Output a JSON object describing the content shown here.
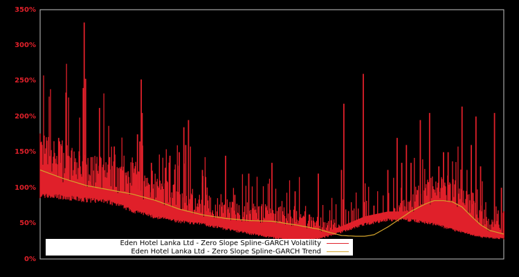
{
  "chart_data": {
    "type": "line",
    "title": "",
    "xlabel": "",
    "ylabel": "",
    "ylim": [
      0,
      350
    ],
    "y_ticks": [
      "0%",
      "50%",
      "100%",
      "150%",
      "200%",
      "250%",
      "300%",
      "350%"
    ],
    "grid": false,
    "legend_position": "lower-left",
    "background": "#000000",
    "frame_color": "#c8c8c8",
    "series": [
      {
        "name": "Eden Hotel Lanka Ltd - Zero Slope Spline-GARCH Volatility",
        "color": "#e0202a",
        "baseline_points": [
          [
            0,
            95
          ],
          [
            0.05,
            92
          ],
          [
            0.1,
            88
          ],
          [
            0.15,
            85
          ],
          [
            0.2,
            72
          ],
          [
            0.25,
            62
          ],
          [
            0.3,
            56
          ],
          [
            0.35,
            52
          ],
          [
            0.4,
            45
          ],
          [
            0.45,
            38
          ],
          [
            0.5,
            32
          ],
          [
            0.55,
            28
          ],
          [
            0.6,
            30
          ],
          [
            0.65,
            40
          ],
          [
            0.7,
            52
          ],
          [
            0.75,
            58
          ],
          [
            0.8,
            58
          ],
          [
            0.85,
            52
          ],
          [
            0.9,
            42
          ],
          [
            0.95,
            33
          ],
          [
            1.0,
            30
          ]
        ],
        "spikes": [
          [
            0.04,
            170
          ],
          [
            0.06,
            145
          ],
          [
            0.042,
            165
          ],
          [
            0.085,
            145
          ],
          [
            0.093,
            240
          ],
          [
            0.095,
            332
          ],
          [
            0.098,
            253
          ],
          [
            0.11,
            143
          ],
          [
            0.128,
            212
          ],
          [
            0.15,
            143
          ],
          [
            0.16,
            158
          ],
          [
            0.2,
            135
          ],
          [
            0.21,
            175
          ],
          [
            0.215,
            165
          ],
          [
            0.218,
            252
          ],
          [
            0.22,
            205
          ],
          [
            0.24,
            135
          ],
          [
            0.27,
            128
          ],
          [
            0.28,
            145
          ],
          [
            0.3,
            150
          ],
          [
            0.31,
            185
          ],
          [
            0.314,
            160
          ],
          [
            0.32,
            195
          ],
          [
            0.35,
            125
          ],
          [
            0.36,
            90
          ],
          [
            0.4,
            145
          ],
          [
            0.42,
            90
          ],
          [
            0.45,
            120
          ],
          [
            0.5,
            135
          ],
          [
            0.55,
            95
          ],
          [
            0.6,
            120
          ],
          [
            0.65,
            125
          ],
          [
            0.7,
            80
          ],
          [
            0.72,
            75
          ],
          [
            0.78,
            85
          ],
          [
            0.8,
            70
          ],
          [
            0.85,
            80
          ],
          [
            0.87,
            110
          ],
          [
            0.9,
            65
          ],
          [
            0.92,
            55
          ],
          [
            1.0,
            67
          ]
        ],
        "spikes_b": [
          [
            0.655,
            218
          ],
          [
            0.697,
            260
          ],
          [
            0.75,
            125
          ],
          [
            0.77,
            170
          ],
          [
            0.78,
            135
          ],
          [
            0.79,
            160
          ],
          [
            0.8,
            135
          ],
          [
            0.82,
            195
          ],
          [
            0.84,
            205
          ],
          [
            0.86,
            130
          ],
          [
            0.87,
            150
          ],
          [
            0.88,
            150
          ],
          [
            0.91,
            214
          ],
          [
            0.93,
            160
          ],
          [
            0.94,
            200
          ],
          [
            0.95,
            130
          ],
          [
            0.98,
            205
          ],
          [
            0.995,
            100
          ]
        ]
      },
      {
        "name": "Eden Hotel Lanka Ltd - Zero Slope Spline-GARCH Trend",
        "color": "#d4a52c",
        "points": [
          [
            0,
            125
          ],
          [
            0.05,
            113
          ],
          [
            0.1,
            103
          ],
          [
            0.15,
            97
          ],
          [
            0.2,
            91
          ],
          [
            0.25,
            82
          ],
          [
            0.3,
            70
          ],
          [
            0.35,
            62
          ],
          [
            0.4,
            57
          ],
          [
            0.45,
            54
          ],
          [
            0.5,
            53
          ],
          [
            0.55,
            48
          ],
          [
            0.6,
            42
          ],
          [
            0.62,
            38
          ],
          [
            0.65,
            33
          ],
          [
            0.68,
            32
          ],
          [
            0.7,
            32
          ],
          [
            0.72,
            34
          ],
          [
            0.75,
            45
          ],
          [
            0.78,
            58
          ],
          [
            0.8,
            67
          ],
          [
            0.83,
            77
          ],
          [
            0.85,
            82
          ],
          [
            0.87,
            82
          ],
          [
            0.89,
            80
          ],
          [
            0.91,
            73
          ],
          [
            0.93,
            60
          ],
          [
            0.95,
            48
          ],
          [
            0.97,
            40
          ],
          [
            1.0,
            35
          ]
        ]
      }
    ]
  },
  "legend": {
    "items": [
      {
        "label": "Eden Hotel Lanka Ltd - Zero Slope Spline-GARCH Volatility",
        "color": "#e0202a"
      },
      {
        "label": "Eden Hotel Lanka Ltd - Zero Slope Spline-GARCH Trend",
        "color": "#d4a52c"
      }
    ]
  }
}
